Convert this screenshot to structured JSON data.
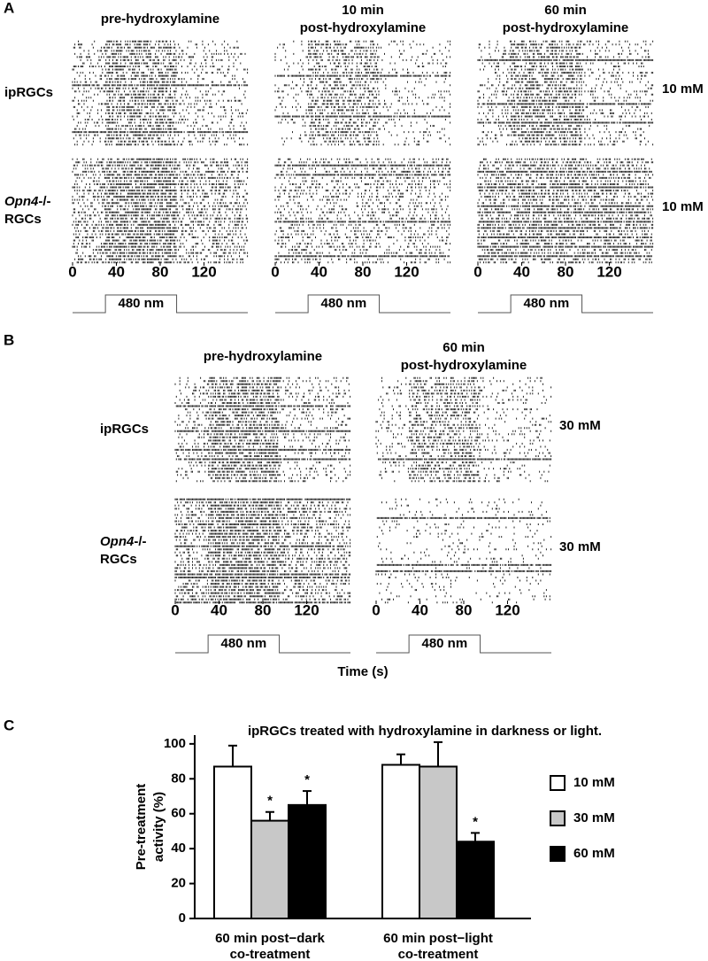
{
  "panel_a": {
    "label": "A",
    "columns": [
      [
        "pre-hydroxylamine"
      ],
      [
        "10 min",
        "post-hydroxylamine"
      ],
      [
        "60 min",
        "post-hydroxylamine"
      ]
    ],
    "rows": [
      {
        "label": [
          "ipRGCs"
        ],
        "concentration": "10 mM"
      },
      {
        "label": [
          {
            "italic": "Opn4",
            "plain": "-/-"
          },
          "RGCs"
        ],
        "concentration": "10 mM"
      }
    ],
    "xlim": [
      0,
      160
    ],
    "xticks": [
      0,
      40,
      80,
      120
    ],
    "stimulus": {
      "label": "480 nm",
      "start": 30,
      "end": 95
    }
  },
  "panel_b": {
    "label": "B",
    "columns": [
      [
        "pre-hydroxylamine"
      ],
      [
        "60 min",
        "post-hydroxylamine"
      ]
    ],
    "rows": [
      {
        "label": [
          "ipRGCs"
        ],
        "concentration": "30 mM"
      },
      {
        "label": [
          {
            "italic": "Opn4",
            "plain": "-/-"
          },
          "RGCs"
        ],
        "concentration": "30 mM"
      }
    ],
    "xlim": [
      0,
      160
    ],
    "xticks": [
      0,
      40,
      80,
      120
    ],
    "xlabel": "Time (s)",
    "stimulus": {
      "label": "480 nm",
      "start": 30,
      "end": 95
    }
  },
  "chart_data": {
    "type": "bar",
    "panel_label": "C",
    "title": "ipRGCs treated with hydroxylamine in darkness or light.",
    "ylabel": [
      "Pre-treatment",
      "activity (%)"
    ],
    "categories": [
      [
        "60 min post−dark",
        "co-treatment"
      ],
      [
        "60 min post−light",
        "co-treatment"
      ]
    ],
    "series": [
      {
        "name": "10 mM",
        "color": "#ffffff",
        "values": [
          87,
          88
        ],
        "errors": [
          12,
          6
        ],
        "significance": [
          null,
          null
        ]
      },
      {
        "name": "30 mM",
        "color": "#c8c8c8",
        "values": [
          56,
          87
        ],
        "errors": [
          5,
          14
        ],
        "significance": [
          "*",
          null
        ]
      },
      {
        "name": "60 mM",
        "color": "#000000",
        "values": [
          65,
          44
        ],
        "errors": [
          8,
          5
        ],
        "significance": [
          "*",
          "*"
        ]
      }
    ],
    "ylim": [
      0,
      105
    ],
    "yticks": [
      0,
      20,
      40,
      60,
      80,
      100
    ],
    "legend": "right"
  }
}
